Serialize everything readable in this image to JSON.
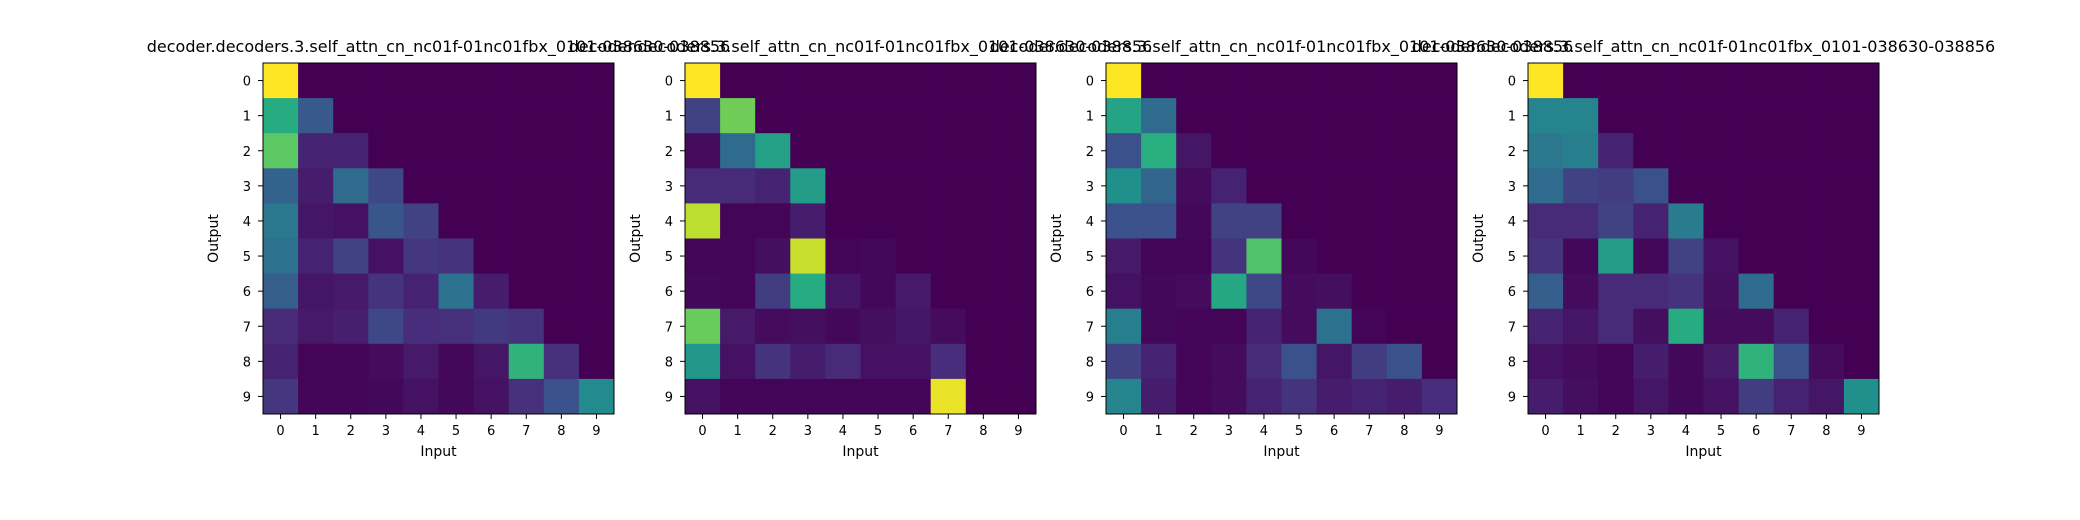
{
  "chart_data": [
    {
      "type": "heatmap",
      "title": "decoder.decoders.3.self_attn_cn_nc01f-01nc01fbx_0101-038630-038856",
      "xlabel": "Input",
      "ylabel": "Output",
      "x_ticks": [
        "0",
        "1",
        "2",
        "3",
        "4",
        "5",
        "6",
        "7",
        "8",
        "9"
      ],
      "y_ticks": [
        "0",
        "1",
        "2",
        "3",
        "4",
        "5",
        "6",
        "7",
        "8",
        "9"
      ],
      "colormap": "viridis",
      "vmin": 0,
      "vmax": 1,
      "values": [
        [
          1.0,
          0,
          0,
          0,
          0,
          0,
          0,
          0,
          0,
          0
        ],
        [
          0.62,
          0.28,
          0,
          0,
          0,
          0,
          0,
          0,
          0,
          0
        ],
        [
          0.75,
          0.1,
          0.1,
          0,
          0,
          0,
          0,
          0,
          0,
          0
        ],
        [
          0.32,
          0.08,
          0.35,
          0.22,
          0,
          0,
          0,
          0,
          0,
          0
        ],
        [
          0.4,
          0.06,
          0.05,
          0.27,
          0.2,
          0,
          0,
          0,
          0,
          0
        ],
        [
          0.38,
          0.1,
          0.2,
          0.05,
          0.16,
          0.15,
          0,
          0,
          0,
          0
        ],
        [
          0.3,
          0.06,
          0.07,
          0.15,
          0.1,
          0.38,
          0.08,
          0,
          0,
          0
        ],
        [
          0.12,
          0.07,
          0.09,
          0.22,
          0.13,
          0.14,
          0.17,
          0.15,
          0,
          0
        ],
        [
          0.1,
          0.01,
          0.01,
          0.03,
          0.07,
          0.02,
          0.06,
          0.65,
          0.14,
          0
        ],
        [
          0.16,
          0.01,
          0.01,
          0.02,
          0.05,
          0.02,
          0.05,
          0.14,
          0.25,
          0.48
        ]
      ]
    },
    {
      "type": "heatmap",
      "title": "decoder.decoders.3.self_attn_cn_nc01f-01nc01fbx_0101-038630-038856",
      "xlabel": "Input",
      "ylabel": "Output",
      "x_ticks": [
        "0",
        "1",
        "2",
        "3",
        "4",
        "5",
        "6",
        "7",
        "8",
        "9"
      ],
      "y_ticks": [
        "0",
        "1",
        "2",
        "3",
        "4",
        "5",
        "6",
        "7",
        "8",
        "9"
      ],
      "colormap": "viridis",
      "vmin": 0,
      "vmax": 1,
      "values": [
        [
          1.0,
          0,
          0,
          0,
          0,
          0,
          0,
          0,
          0,
          0
        ],
        [
          0.2,
          0.78,
          0,
          0,
          0,
          0,
          0,
          0,
          0,
          0
        ],
        [
          0.03,
          0.35,
          0.57,
          0,
          0,
          0,
          0,
          0,
          0,
          0
        ],
        [
          0.12,
          0.12,
          0.1,
          0.55,
          0,
          0,
          0,
          0,
          0,
          0
        ],
        [
          0.9,
          0.01,
          0.01,
          0.08,
          0,
          0,
          0,
          0,
          0,
          0
        ],
        [
          0.01,
          0.01,
          0.04,
          0.92,
          0.01,
          0.02,
          0,
          0,
          0,
          0
        ],
        [
          0.02,
          0.01,
          0.18,
          0.62,
          0.06,
          0.02,
          0.07,
          0,
          0,
          0
        ],
        [
          0.77,
          0.07,
          0.03,
          0.04,
          0.02,
          0.04,
          0.06,
          0.03,
          0,
          0
        ],
        [
          0.53,
          0.05,
          0.15,
          0.08,
          0.12,
          0.05,
          0.05,
          0.13,
          0,
          0
        ],
        [
          0.05,
          0.01,
          0.01,
          0.01,
          0.01,
          0.01,
          0.01,
          0.97,
          0,
          0
        ]
      ]
    },
    {
      "type": "heatmap",
      "title": "decoder.decoders.3.self_attn_cn_nc01f-01nc01fbx_0101-038630-038856",
      "xlabel": "Input",
      "ylabel": "Output",
      "x_ticks": [
        "0",
        "1",
        "2",
        "3",
        "4",
        "5",
        "6",
        "7",
        "8",
        "9"
      ],
      "y_ticks": [
        "0",
        "1",
        "2",
        "3",
        "4",
        "5",
        "6",
        "7",
        "8",
        "9"
      ],
      "colormap": "viridis",
      "vmin": 0,
      "vmax": 1,
      "values": [
        [
          1.0,
          0,
          0,
          0,
          0,
          0,
          0,
          0,
          0,
          0
        ],
        [
          0.58,
          0.35,
          0,
          0,
          0,
          0,
          0,
          0,
          0,
          0
        ],
        [
          0.25,
          0.63,
          0.06,
          0,
          0,
          0,
          0,
          0,
          0,
          0
        ],
        [
          0.5,
          0.33,
          0.03,
          0.1,
          0,
          0,
          0,
          0,
          0,
          0
        ],
        [
          0.25,
          0.25,
          0.02,
          0.2,
          0.2,
          0,
          0,
          0,
          0,
          0
        ],
        [
          0.07,
          0.01,
          0.01,
          0.15,
          0.72,
          0.02,
          0,
          0,
          0,
          0
        ],
        [
          0.05,
          0.02,
          0.03,
          0.6,
          0.22,
          0.03,
          0.04,
          0,
          0,
          0
        ],
        [
          0.43,
          0.02,
          0.01,
          0.01,
          0.1,
          0.03,
          0.38,
          0.01,
          0,
          0
        ],
        [
          0.2,
          0.1,
          0.01,
          0.03,
          0.12,
          0.25,
          0.06,
          0.18,
          0.25,
          0
        ],
        [
          0.45,
          0.08,
          0.01,
          0.03,
          0.1,
          0.15,
          0.08,
          0.1,
          0.08,
          0.13
        ]
      ]
    },
    {
      "type": "heatmap",
      "title": "decoder.decoders.3.self_attn_cn_nc01f-01nc01fbx_0101-038630-038856",
      "xlabel": "Input",
      "ylabel": "Output",
      "x_ticks": [
        "0",
        "1",
        "2",
        "3",
        "4",
        "5",
        "6",
        "7",
        "8",
        "9"
      ],
      "y_ticks": [
        "0",
        "1",
        "2",
        "3",
        "4",
        "5",
        "6",
        "7",
        "8",
        "9"
      ],
      "colormap": "viridis",
      "vmin": 0,
      "vmax": 1,
      "values": [
        [
          1.0,
          0,
          0,
          0,
          0,
          0,
          0,
          0,
          0,
          0
        ],
        [
          0.45,
          0.45,
          0,
          0,
          0,
          0,
          0,
          0,
          0,
          0
        ],
        [
          0.4,
          0.43,
          0.1,
          0,
          0,
          0,
          0,
          0,
          0,
          0
        ],
        [
          0.35,
          0.2,
          0.18,
          0.25,
          0,
          0,
          0,
          0,
          0,
          0
        ],
        [
          0.12,
          0.12,
          0.2,
          0.1,
          0.42,
          0,
          0,
          0,
          0,
          0
        ],
        [
          0.15,
          0.02,
          0.55,
          0.02,
          0.2,
          0.05,
          0,
          0,
          0,
          0
        ],
        [
          0.3,
          0.03,
          0.12,
          0.12,
          0.15,
          0.04,
          0.35,
          0,
          0,
          0
        ],
        [
          0.1,
          0.06,
          0.12,
          0.04,
          0.62,
          0.03,
          0.03,
          0.1,
          0,
          0
        ],
        [
          0.05,
          0.03,
          0.01,
          0.08,
          0.02,
          0.07,
          0.65,
          0.25,
          0.03,
          0
        ],
        [
          0.08,
          0.04,
          0.01,
          0.06,
          0.02,
          0.05,
          0.18,
          0.1,
          0.06,
          0.5
        ]
      ]
    }
  ]
}
